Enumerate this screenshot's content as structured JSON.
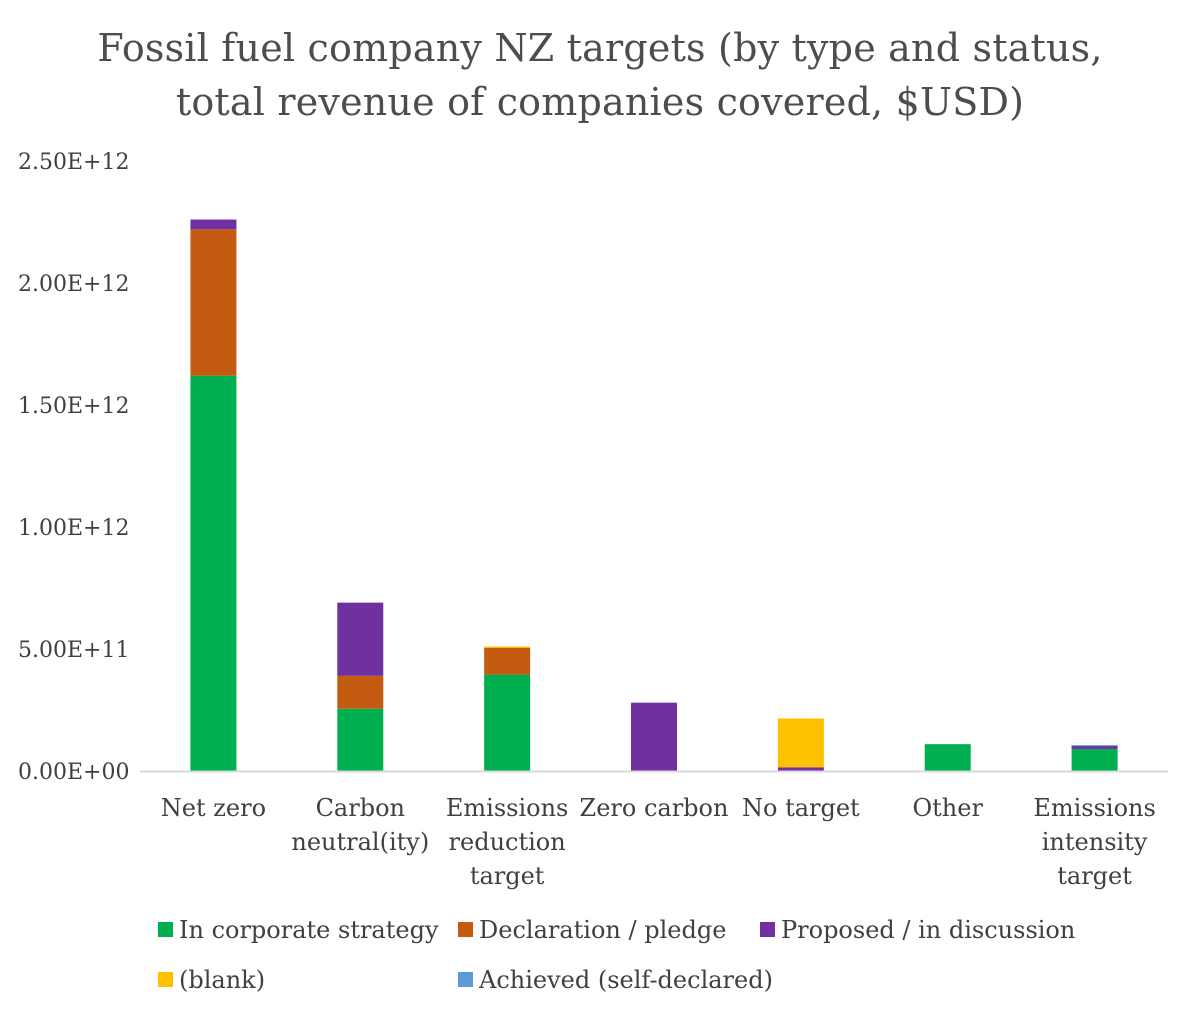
{
  "chart_data": {
    "type": "bar",
    "stacked": true,
    "title": "Fossil fuel company NZ targets (by type and status, total revenue of companies covered, $USD)",
    "title_lines": [
      "Fossil fuel company NZ targets (by type and status,",
      "total revenue of companies covered, $USD)"
    ],
    "xlabel": "",
    "ylabel": "",
    "ylim": [
      0,
      2500000000000
    ],
    "yticks": [
      0,
      500000000000,
      1000000000000,
      1500000000000,
      2000000000000,
      2500000000000
    ],
    "ytick_labels": [
      "0.00E+00",
      "5.00E+11",
      "1.00E+12",
      "1.50E+12",
      "2.00E+12",
      "2.50E+12"
    ],
    "grid": false,
    "legend_position": "bottom",
    "categories": [
      [
        "Net zero"
      ],
      [
        "Carbon",
        "neutral(ity)"
      ],
      [
        "Emissions",
        "reduction",
        "target"
      ],
      [
        "Zero carbon"
      ],
      [
        "No target"
      ],
      [
        "Other"
      ],
      [
        "Emissions",
        "intensity",
        "target"
      ]
    ],
    "series": [
      {
        "name": "In corporate strategy",
        "color": "#00b050",
        "values": [
          1620000000000,
          255000000000,
          395000000000,
          0,
          0,
          110000000000,
          90000000000
        ]
      },
      {
        "name": "Declaration / pledge",
        "color": "#c55a11",
        "values": [
          600000000000,
          135000000000,
          110000000000,
          0,
          0,
          0,
          0
        ]
      },
      {
        "name": "Proposed / in discussion",
        "color": "#7030a0",
        "values": [
          40000000000,
          300000000000,
          0,
          280000000000,
          15000000000,
          0,
          13000000000
        ]
      },
      {
        "name": "(blank)",
        "color": "#ffc000",
        "values": [
          0,
          0,
          5000000000,
          0,
          200000000000,
          0,
          0
        ]
      },
      {
        "name": "Achieved (self-declared)",
        "color": "#5b9bd5",
        "values": [
          0,
          0,
          0,
          0,
          0,
          0,
          3000000000
        ]
      }
    ]
  }
}
